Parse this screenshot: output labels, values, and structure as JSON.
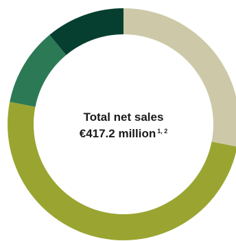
{
  "chart_data": {
    "type": "pie",
    "style": "donut",
    "title": "",
    "center_label": {
      "line1": "Total net sales",
      "line2": "€417.2 million",
      "footnote": "1, 2"
    },
    "legend": "none",
    "slices": [
      {
        "value": 0.281,
        "color": "#cdc9a8"
      },
      {
        "value": 0.5,
        "color": "#9aa531"
      },
      {
        "value": 0.109,
        "color": "#2b7a55"
      },
      {
        "value": 0.11,
        "color": "#063f2f"
      }
    ]
  }
}
